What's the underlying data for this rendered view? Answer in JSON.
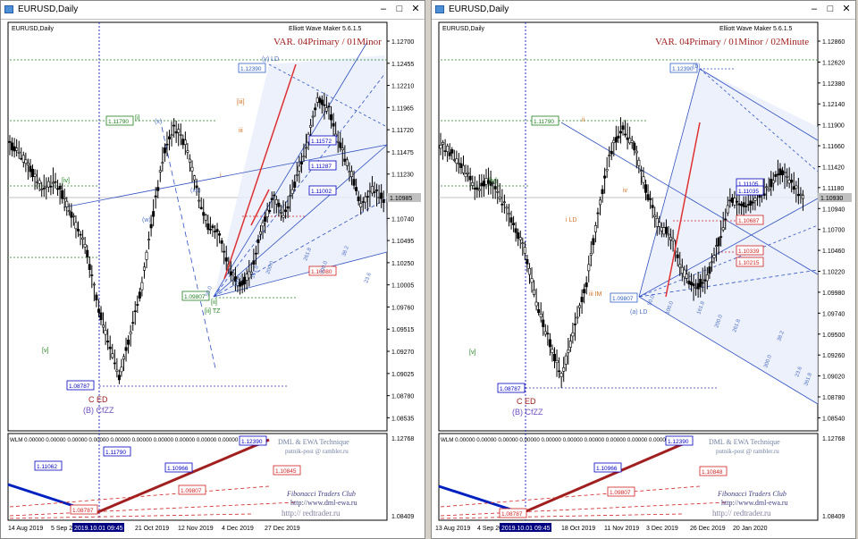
{
  "left": {
    "title": "EURUSD,Daily",
    "symbol": "EURUSD,Daily",
    "plugin": "Elliott Wave Maker 5.6.1.5",
    "variant": "VAR. 04Primary / 01Minor",
    "price_scale": [
      "1.12700",
      "1.12455",
      "1.12210",
      "1.11965",
      "1.11720",
      "1.11475",
      "1.11230",
      "1.10985",
      "1.10740",
      "1.10495",
      "1.10250",
      "1.10005",
      "1.09760",
      "1.09515",
      "1.09270",
      "1.09025",
      "1.08780",
      "1.08535"
    ],
    "last_price": "1.10985",
    "price_boxes": [
      {
        "text": "1.12390",
        "color": "#3060c0"
      },
      {
        "text": "1.11790",
        "color": "#208020"
      },
      {
        "text": "1.11572",
        "color": "#0000c0"
      },
      {
        "text": "1.11287",
        "color": "#0000c0"
      },
      {
        "text": "1.11002",
        "color": "#0000c0"
      },
      {
        "text": "1.10080",
        "color": "#d02020"
      },
      {
        "text": "1.09807",
        "color": "#208020"
      },
      {
        "text": "1.08787",
        "color": "#0000c0"
      }
    ],
    "wave_labels": [
      "[i]",
      "(x)",
      "[iv]",
      "(w)",
      "(xx)",
      "[iii]",
      "i",
      "iii",
      "[ii] TZ",
      "(y) LD",
      "C ED",
      "(B) CfZZ",
      "[v]",
      "[ii]"
    ],
    "fib_labels": [
      "50.0",
      "100.0",
      "161.8",
      "200.0",
      "261.8",
      "300.0",
      "23.6",
      "38.2"
    ],
    "indicator": {
      "header": "WLM 0.00000 0.00000 0.00000 0.00000 0.00000 0.00000 0.00000 0.00000 0.00000 0.00000",
      "scale": [
        "1.12768",
        "1.08409"
      ],
      "boxes": [
        "1.11790",
        "1.11062",
        "1.10966",
        "1.10845",
        "1.09807",
        "1.08787",
        "1.12390"
      ],
      "watermark": [
        "DML & EWA Technique",
        "putnik-post @ rambler.ru",
        "Fibonacci   Traders   Club",
        "http://www.dml-ewa.ru",
        "http:// redtrader.ru"
      ]
    },
    "time_axis": [
      "14 Aug 2019",
      "5 Sep 2019",
      "2019.10.01 09:45",
      "21 Oct 2019",
      "12 Nov 2019",
      "4 Dec 2019",
      "27 Dec 2019"
    ]
  },
  "right": {
    "title": "EURUSD,Daily",
    "symbol": "EURUSD,Daily",
    "plugin": "Elliott Wave Maker 5.6.1.5",
    "variant": "VAR. 04Primary / 01Minor / 02Minute",
    "price_scale": [
      "1.12860",
      "1.12620",
      "1.12380",
      "1.12140",
      "1.11900",
      "1.11660",
      "1.11420",
      "1.11180",
      "1.10940",
      "1.10700",
      "1.10460",
      "1.10220",
      "1.09980",
      "1.09740",
      "1.09500",
      "1.09260",
      "1.09020",
      "1.08780",
      "1.08540"
    ],
    "last_price": "1.10930",
    "price_boxes": [
      {
        "text": "1.12390",
        "color": "#3060c0"
      },
      {
        "text": "1.11790",
        "color": "#208020"
      },
      {
        "text": "1.11105",
        "color": "#0000c0"
      },
      {
        "text": "1.11035",
        "color": "#0000c0"
      },
      {
        "text": "1.10687",
        "color": "#d02020"
      },
      {
        "text": "1.10339",
        "color": "#d02020"
      },
      {
        "text": "1.10215",
        "color": "#d02020"
      },
      {
        "text": "1.09807",
        "color": "#3060c0"
      },
      {
        "text": "1.08787",
        "color": "#0000c0"
      }
    ],
    "wave_labels": [
      "[iv]",
      "i LD",
      "iv",
      "iii IM",
      "(a) LD",
      "C ED",
      "(B) CfZZ",
      "[v]",
      "ii",
      "(b)"
    ],
    "fib_labels": [
      "50.0",
      "100.0",
      "161.8",
      "200.0",
      "261.8",
      "300.0",
      "23.6",
      "38.2",
      "361.8"
    ],
    "indicator": {
      "header": "WLM 0.00000 0.00000 0.00000 0.00000 0.00000 0.00000 0.00000 0.00000 0.00000 0.00000",
      "scale": [
        "1.12768",
        "1.08409"
      ],
      "boxes": [
        "1.10966",
        "1.10848",
        "1.09807",
        "1.08787",
        "1.12390"
      ],
      "watermark": [
        "DML & EWA Technique",
        "putnik-post @ rambler.ru",
        "Fibonacci   Traders   Club",
        "http://www.dml-ewa.ru",
        "http:// redtrader.ru"
      ]
    },
    "time_axis": [
      "13 Aug 2019",
      "4 Sep 2019",
      "2019.10.01 09:45",
      "18 Oct 2019",
      "11 Nov 2019",
      "3 Dec 2019",
      "26 Dec 2019",
      "20 Jan 2020"
    ]
  },
  "colors": {
    "fan": "#3050c0",
    "fan_fill": "#e8eefb",
    "red": "#e03030",
    "green": "#208020",
    "orange": "#d07020",
    "blue": "#0000c0",
    "maroon": "#a02020"
  }
}
